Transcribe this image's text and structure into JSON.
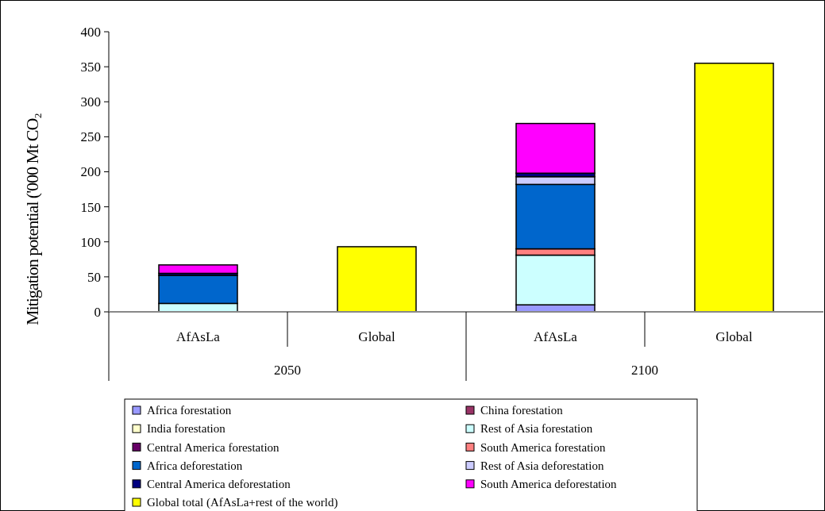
{
  "chart_data": {
    "type": "bar",
    "stacked": true,
    "ylabel": "Mitigation potential ('000 Mt CO₂",
    "categories": [
      "AfAsLa",
      "Global",
      "AfAsLa",
      "Global"
    ],
    "annotations": [
      "2050",
      "2100"
    ],
    "ylim": [
      0,
      400
    ],
    "yticks": [
      0,
      50,
      100,
      150,
      200,
      250,
      300,
      350,
      400
    ],
    "grid": false,
    "legend": "bottom",
    "series": [
      {
        "name": "Africa forestation",
        "color": "#9999ff",
        "values": [
          null,
          null,
          10,
          null
        ]
      },
      {
        "name": "China forestation",
        "color": "#993366",
        "values": [
          0,
          null,
          0,
          null
        ]
      },
      {
        "name": "India forestation",
        "color": "#ffffcc",
        "values": [
          0,
          null,
          0,
          null
        ]
      },
      {
        "name": "Rest of Asia forestation",
        "color": "#ccffff",
        "values": [
          12,
          null,
          71,
          null
        ]
      },
      {
        "name": "Central America forestation",
        "color": "#660066",
        "values": [
          0,
          null,
          0,
          null
        ]
      },
      {
        "name": "South America forestation",
        "color": "#ff8080",
        "values": [
          0,
          null,
          9,
          null
        ]
      },
      {
        "name": "Africa deforestation",
        "color": "#0066cc",
        "values": [
          40,
          null,
          92,
          null
        ]
      },
      {
        "name": "Rest of Asia deforestation",
        "color": "#ccccff",
        "values": [
          0,
          null,
          11,
          null
        ]
      },
      {
        "name": "Central America deforestation",
        "color": "#000080",
        "values": [
          3,
          null,
          5,
          null
        ]
      },
      {
        "name": "South America deforestation",
        "color": "#ff00ff",
        "values": [
          12,
          null,
          71,
          null
        ]
      },
      {
        "name": "Global total (AfAsLa+rest of the world)",
        "color": "#ffff00",
        "values": [
          null,
          93,
          null,
          355
        ]
      }
    ]
  }
}
